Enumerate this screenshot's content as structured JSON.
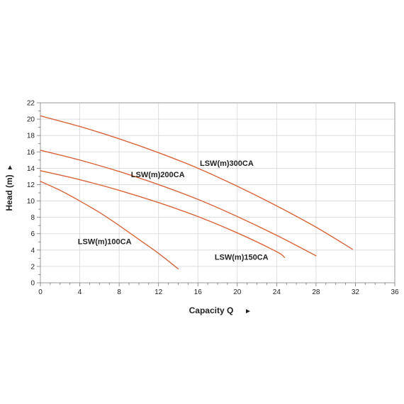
{
  "chart_data": {
    "type": "line",
    "xlabel": "Capacity Q",
    "ylabel": "Head (m)",
    "axis_arrow": "►",
    "xlim": [
      0,
      36
    ],
    "ylim": [
      0,
      22
    ],
    "x_ticks": [
      0,
      4,
      8,
      12,
      16,
      20,
      24,
      28,
      32,
      36
    ],
    "y_ticks": [
      0,
      2,
      4,
      6,
      8,
      10,
      12,
      14,
      16,
      18,
      20,
      22
    ],
    "grid": true,
    "line_color": "#d9643a",
    "series": [
      {
        "name": "LSW(m)100CA",
        "label_at": [
          3.8,
          4.7
        ],
        "x": [
          0,
          2,
          4,
          6,
          8,
          10,
          12,
          14
        ],
        "y": [
          12.4,
          11.3,
          10.0,
          8.6,
          7.0,
          5.3,
          3.6,
          1.7
        ]
      },
      {
        "name": "LSW(m)150CA",
        "label_at": [
          17.7,
          2.8
        ],
        "x": [
          0,
          4,
          8,
          12,
          16,
          20,
          24,
          24.8
        ],
        "y": [
          13.7,
          12.6,
          11.3,
          9.8,
          8.1,
          6.1,
          3.8,
          3.1
        ]
      },
      {
        "name": "LSW(m)200CA",
        "label_at": [
          9.2,
          12.9
        ],
        "x": [
          0,
          4,
          8,
          12,
          16,
          20,
          24,
          28
        ],
        "y": [
          16.2,
          15.0,
          13.6,
          12.0,
          10.2,
          8.1,
          5.8,
          3.3
        ]
      },
      {
        "name": "LSW(m)300CA",
        "label_at": [
          16.2,
          14.3
        ],
        "x": [
          0,
          4,
          8,
          12,
          16,
          20,
          24,
          28,
          31.7
        ],
        "y": [
          20.4,
          19.1,
          17.6,
          15.9,
          14.0,
          11.8,
          9.4,
          6.8,
          4.1
        ]
      }
    ]
  }
}
